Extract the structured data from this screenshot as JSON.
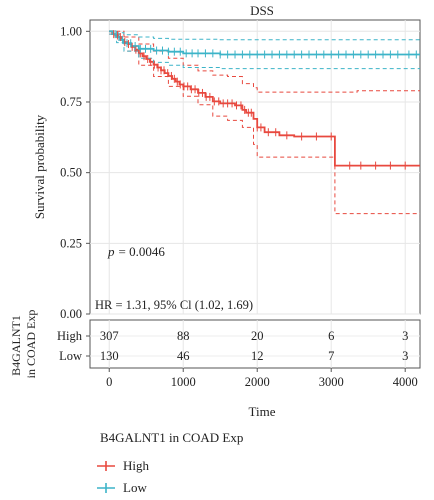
{
  "chart_data": {
    "type": "line",
    "title": "DSS",
    "ylabel": "Survival probability",
    "xlabel": "Time",
    "xlim": [
      -260,
      4200
    ],
    "ylim": [
      0,
      1.04
    ],
    "x_ticks": [
      0,
      1000,
      2000,
      3000,
      4000
    ],
    "x_tick_labels": [
      "0",
      "1000",
      "2000",
      "3000",
      "4000"
    ],
    "y_ticks": [
      0,
      0.25,
      0.5,
      0.75,
      1.0
    ],
    "y_tick_labels": [
      "0.00",
      "0.25",
      "0.50",
      "0.75",
      "1.00"
    ],
    "grid": true,
    "annotations": {
      "p_label": "p",
      "p_value": "= 0.0046",
      "hr_text": "HR = 1.31, 95% Cl (1.02, 1.69)"
    },
    "series": [
      {
        "name": "High",
        "color": "#e8493f",
        "survival": [
          [
            0,
            1.0
          ],
          [
            40,
            0.99
          ],
          [
            80,
            0.985
          ],
          [
            120,
            0.98
          ],
          [
            160,
            0.97
          ],
          [
            200,
            0.962
          ],
          [
            250,
            0.955
          ],
          [
            300,
            0.945
          ],
          [
            350,
            0.935
          ],
          [
            400,
            0.922
          ],
          [
            450,
            0.912
          ],
          [
            500,
            0.902
          ],
          [
            550,
            0.892
          ],
          [
            600,
            0.882
          ],
          [
            650,
            0.872
          ],
          [
            700,
            0.862
          ],
          [
            750,
            0.852
          ],
          [
            800,
            0.842
          ],
          [
            850,
            0.832
          ],
          [
            900,
            0.822
          ],
          [
            950,
            0.812
          ],
          [
            1000,
            0.805
          ],
          [
            1100,
            0.795
          ],
          [
            1200,
            0.782
          ],
          [
            1300,
            0.768
          ],
          [
            1400,
            0.752
          ],
          [
            1500,
            0.745
          ],
          [
            1700,
            0.738
          ],
          [
            1800,
            0.722
          ],
          [
            1850,
            0.712
          ],
          [
            1950,
            0.69
          ],
          [
            2000,
            0.66
          ],
          [
            2100,
            0.643
          ],
          [
            2300,
            0.632
          ],
          [
            2500,
            0.628
          ],
          [
            3050,
            0.628
          ],
          [
            3050,
            0.525
          ],
          [
            4200,
            0.525
          ]
        ],
        "upper": [
          [
            0,
            1.0
          ],
          [
            200,
            0.98
          ],
          [
            400,
            0.955
          ],
          [
            600,
            0.93
          ],
          [
            800,
            0.905
          ],
          [
            1000,
            0.88
          ],
          [
            1200,
            0.86
          ],
          [
            1400,
            0.845
          ],
          [
            1600,
            0.84
          ],
          [
            1800,
            0.815
          ],
          [
            1950,
            0.8
          ],
          [
            2000,
            0.785
          ],
          [
            2300,
            0.785
          ],
          [
            3350,
            0.785
          ],
          [
            3350,
            0.79
          ],
          [
            4200,
            0.79
          ]
        ],
        "lower": [
          [
            0,
            0.99
          ],
          [
            200,
            0.93
          ],
          [
            400,
            0.88
          ],
          [
            600,
            0.84
          ],
          [
            800,
            0.805
          ],
          [
            1000,
            0.77
          ],
          [
            1200,
            0.74
          ],
          [
            1400,
            0.7
          ],
          [
            1600,
            0.685
          ],
          [
            1800,
            0.66
          ],
          [
            1950,
            0.6
          ],
          [
            2000,
            0.555
          ],
          [
            2300,
            0.555
          ],
          [
            3050,
            0.555
          ],
          [
            3050,
            0.355
          ],
          [
            4200,
            0.355
          ]
        ],
        "censor_x": [
          60,
          110,
          150,
          210,
          260,
          310,
          360,
          420,
          470,
          520,
          560,
          610,
          660,
          700,
          740,
          790,
          840,
          880,
          920,
          960,
          1010,
          1060,
          1110,
          1160,
          1210,
          1260,
          1310,
          1360,
          1420,
          1480,
          1540,
          1600,
          1660,
          1720,
          1780,
          1830,
          1880,
          1920,
          2000,
          2050,
          2150,
          2250,
          2400,
          2600,
          2800,
          3000,
          3250,
          3400,
          3600,
          3800,
          4000
        ]
      },
      {
        "name": "Low",
        "color": "#3cb4c8",
        "survival": [
          [
            0,
            1.0
          ],
          [
            50,
            0.99
          ],
          [
            100,
            0.98
          ],
          [
            150,
            0.97
          ],
          [
            200,
            0.958
          ],
          [
            300,
            0.948
          ],
          [
            400,
            0.938
          ],
          [
            600,
            0.932
          ],
          [
            800,
            0.928
          ],
          [
            1000,
            0.922
          ],
          [
            1500,
            0.918
          ],
          [
            4200,
            0.918
          ]
        ],
        "upper": [
          [
            0,
            1.0
          ],
          [
            100,
            0.995
          ],
          [
            200,
            0.988
          ],
          [
            400,
            0.98
          ],
          [
            600,
            0.975
          ],
          [
            800,
            0.972
          ],
          [
            1500,
            0.97
          ],
          [
            4200,
            0.97
          ]
        ],
        "lower": [
          [
            0,
            0.99
          ],
          [
            100,
            0.96
          ],
          [
            200,
            0.93
          ],
          [
            400,
            0.905
          ],
          [
            600,
            0.89
          ],
          [
            800,
            0.88
          ],
          [
            1000,
            0.872
          ],
          [
            1500,
            0.868
          ],
          [
            4200,
            0.868
          ]
        ],
        "censor_x": [
          80,
          130,
          180,
          240,
          290,
          350,
          420,
          490,
          560,
          640,
          720,
          800,
          880,
          960,
          1040,
          1120,
          1200,
          1300,
          1400,
          1500,
          1600,
          1700,
          1800,
          1900,
          2000,
          2100,
          2200,
          2300,
          2400,
          2500,
          2600,
          2700,
          2800,
          2900,
          3000,
          3100,
          3200,
          3300,
          3400,
          3500,
          3600,
          3700,
          3800,
          3900,
          4050,
          4150
        ]
      }
    ],
    "risk_table": {
      "ylabel": "B4GALNT1\nin COAD Exp",
      "rows": [
        {
          "label": "High",
          "color": "#e8493f",
          "counts": [
            "307",
            "88",
            "20",
            "6",
            "3"
          ]
        },
        {
          "label": "Low",
          "color": "#3cb4c8",
          "counts": [
            "130",
            "46",
            "12",
            "7",
            "3"
          ]
        }
      ]
    },
    "legend": {
      "title": "B4GALNT1 in COAD Exp",
      "position": "bottom-left",
      "items": [
        {
          "label": "High",
          "color": "#e8493f"
        },
        {
          "label": "Low",
          "color": "#3cb4c8"
        }
      ]
    }
  }
}
